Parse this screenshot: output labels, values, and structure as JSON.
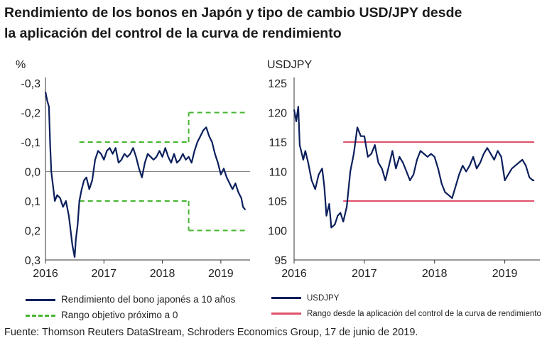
{
  "title": {
    "line1": "Rendimiento de los bonos en Japón y tipo de cambio USD/JPY desde",
    "line2": "la aplicación del control de la curva de rendimiento"
  },
  "colors": {
    "bond_line": "#0b1f5c",
    "target_band": "#46b52f",
    "usdjpy_line": "#0b1f5c",
    "range_band": "#e0506a",
    "zero_line": "#888888"
  },
  "chart_data": [
    {
      "type": "line",
      "unit_label": "%",
      "y_inverted": true,
      "ylim": [
        -0.3,
        0.3
      ],
      "yticks": [
        "-0,3",
        "-0,2",
        "-0,1",
        "0,0",
        "0,1",
        "0,2",
        "0,3"
      ],
      "ytick_values": [
        -0.3,
        -0.2,
        -0.1,
        0.0,
        0.1,
        0.2,
        0.3
      ],
      "xlim": [
        2016.0,
        2019.5
      ],
      "xticks": [
        "2016",
        "2017",
        "2018",
        "2019"
      ],
      "xtick_values": [
        2016.0,
        2017.0,
        2018.0,
        2019.0
      ],
      "series": [
        {
          "name": "Rendimiento del bono japonés a 10 años",
          "x": [
            2016.0,
            2016.03,
            2016.06,
            2016.08,
            2016.1,
            2016.13,
            2016.16,
            2016.2,
            2016.25,
            2016.3,
            2016.35,
            2016.4,
            2016.43,
            2016.46,
            2016.5,
            2016.52,
            2016.55,
            2016.58,
            2016.62,
            2016.66,
            2016.7,
            2016.75,
            2016.8,
            2016.85,
            2016.9,
            2016.95,
            2017.0,
            2017.05,
            2017.1,
            2017.15,
            2017.2,
            2017.25,
            2017.3,
            2017.35,
            2017.4,
            2017.45,
            2017.5,
            2017.55,
            2017.6,
            2017.65,
            2017.7,
            2017.75,
            2017.8,
            2017.85,
            2017.9,
            2017.95,
            2018.0,
            2018.05,
            2018.1,
            2018.15,
            2018.2,
            2018.25,
            2018.3,
            2018.35,
            2018.4,
            2018.45,
            2018.5,
            2018.55,
            2018.6,
            2018.65,
            2018.7,
            2018.75,
            2018.8,
            2018.85,
            2018.9,
            2018.95,
            2019.0,
            2019.05,
            2019.1,
            2019.15,
            2019.2,
            2019.25,
            2019.3,
            2019.35,
            2019.38,
            2019.42
          ],
          "values": [
            -0.27,
            -0.24,
            -0.22,
            -0.09,
            0.0,
            0.05,
            0.1,
            0.08,
            0.09,
            0.12,
            0.1,
            0.15,
            0.2,
            0.25,
            0.29,
            0.23,
            0.18,
            0.1,
            0.06,
            0.03,
            0.02,
            0.06,
            0.03,
            -0.04,
            -0.07,
            -0.06,
            -0.04,
            -0.07,
            -0.08,
            -0.06,
            -0.08,
            -0.03,
            -0.04,
            -0.06,
            -0.05,
            -0.06,
            -0.08,
            -0.05,
            -0.01,
            0.02,
            -0.03,
            -0.06,
            -0.05,
            -0.04,
            -0.05,
            -0.07,
            -0.05,
            -0.08,
            -0.05,
            -0.03,
            -0.06,
            -0.03,
            -0.04,
            -0.06,
            -0.04,
            -0.05,
            -0.03,
            -0.07,
            -0.1,
            -0.12,
            -0.14,
            -0.15,
            -0.12,
            -0.1,
            -0.06,
            -0.03,
            0.01,
            -0.01,
            0.02,
            0.04,
            0.06,
            0.04,
            0.07,
            0.09,
            0.12,
            0.13
          ]
        }
      ],
      "bands": [
        {
          "name": "Rango objetivo próximo a 0",
          "segments": [
            {
              "x_start": 2016.58,
              "x_end": 2018.45,
              "lower": -0.1,
              "upper": 0.1
            },
            {
              "x_start": 2018.45,
              "x_end": 2019.42,
              "lower": -0.2,
              "upper": 0.2
            }
          ]
        }
      ],
      "legend": [
        {
          "label": "Rendimiento del bono japonés a 10 años",
          "style": "solid"
        },
        {
          "label": "Rango objetivo próximo a 0",
          "style": "dashed"
        }
      ]
    },
    {
      "type": "line",
      "unit_label": "USDJPY",
      "ylim": [
        95,
        125
      ],
      "yticks": [
        "125",
        "120",
        "115",
        "110",
        "105",
        "100",
        "95"
      ],
      "ytick_values": [
        125,
        120,
        115,
        110,
        105,
        100,
        95
      ],
      "xlim": [
        2016.0,
        2019.5
      ],
      "xticks": [
        "2016",
        "2017",
        "2018",
        "2019"
      ],
      "xtick_values": [
        2016.0,
        2017.0,
        2018.0,
        2019.0
      ],
      "series": [
        {
          "name": "USDJPY",
          "x": [
            2016.0,
            2016.03,
            2016.06,
            2016.08,
            2016.1,
            2016.13,
            2016.16,
            2016.2,
            2016.25,
            2016.3,
            2016.35,
            2016.4,
            2016.43,
            2016.46,
            2016.5,
            2016.53,
            2016.58,
            2016.62,
            2016.66,
            2016.7,
            2016.75,
            2016.8,
            2016.85,
            2016.9,
            2016.95,
            2017.0,
            2017.05,
            2017.1,
            2017.15,
            2017.2,
            2017.25,
            2017.3,
            2017.35,
            2017.4,
            2017.45,
            2017.5,
            2017.55,
            2017.6,
            2017.65,
            2017.7,
            2017.75,
            2017.8,
            2017.85,
            2017.9,
            2017.95,
            2018.0,
            2018.05,
            2018.1,
            2018.15,
            2018.2,
            2018.25,
            2018.3,
            2018.35,
            2018.4,
            2018.45,
            2018.5,
            2018.55,
            2018.6,
            2018.65,
            2018.7,
            2018.75,
            2018.8,
            2018.85,
            2018.9,
            2018.95,
            2019.0,
            2019.05,
            2019.1,
            2019.15,
            2019.2,
            2019.25,
            2019.3,
            2019.35,
            2019.4,
            2019.42
          ],
          "values": [
            120.5,
            118.5,
            121.0,
            114.5,
            113.5,
            112.0,
            113.5,
            111.5,
            108.5,
            107.0,
            109.5,
            110.5,
            107.5,
            102.5,
            104.5,
            100.5,
            101.0,
            102.5,
            103.0,
            101.5,
            104.0,
            110.0,
            113.0,
            117.5,
            116.0,
            116.0,
            112.5,
            113.0,
            114.5,
            111.5,
            110.5,
            108.5,
            111.0,
            113.5,
            110.5,
            112.5,
            111.5,
            110.0,
            108.5,
            109.5,
            112.0,
            113.5,
            113.0,
            112.5,
            113.0,
            112.5,
            110.5,
            108.0,
            106.5,
            106.0,
            105.5,
            107.5,
            109.5,
            111.0,
            110.0,
            111.0,
            112.5,
            110.5,
            111.5,
            113.0,
            114.0,
            113.0,
            112.0,
            113.5,
            112.5,
            108.5,
            109.5,
            110.5,
            111.0,
            111.5,
            112.0,
            111.0,
            109.0,
            108.5,
            108.5
          ]
        }
      ],
      "bands": [
        {
          "name": "Rango desde la aplicación del control de la curva de rendimiento",
          "segments": [
            {
              "x_start": 2016.7,
              "x_end": 2019.42,
              "lower": 105,
              "upper": 115
            }
          ]
        }
      ],
      "legend": [
        {
          "label": "USDJPY",
          "style": "solid"
        },
        {
          "label": "Rango desde la aplicación del control de la curva de rendimiento",
          "style": "solid-red"
        }
      ]
    }
  ],
  "source": "Fuente: Thomson Reuters DataStream, Schroders Economics Group, 17 de junio de 2019."
}
